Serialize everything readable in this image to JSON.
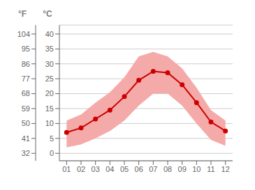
{
  "chart_data": {
    "type": "line",
    "x": [
      1,
      2,
      3,
      4,
      5,
      6,
      7,
      8,
      9,
      10,
      11,
      12
    ],
    "xlim": [
      0.5,
      12.5
    ],
    "xticks": [
      {
        "value": 1,
        "label": "01"
      },
      {
        "value": 2,
        "label": "02"
      },
      {
        "value": 3,
        "label": "03"
      },
      {
        "value": 4,
        "label": "04"
      },
      {
        "value": 5,
        "label": "05"
      },
      {
        "value": 6,
        "label": "06"
      },
      {
        "value": 7,
        "label": "07"
      },
      {
        "value": 8,
        "label": "08"
      },
      {
        "value": 9,
        "label": "09"
      },
      {
        "value": 10,
        "label": "10"
      },
      {
        "value": 11,
        "label": "11"
      },
      {
        "value": 12,
        "label": "12"
      }
    ],
    "ylabel": "°C",
    "ylim": [
      -2.5,
      43
    ],
    "yticks": [
      0,
      5,
      10,
      15,
      20,
      25,
      30,
      35,
      40
    ],
    "y2label": "°F",
    "y2lim": [
      27.5,
      109.4
    ],
    "y2ticks": [
      32,
      41,
      50,
      59,
      68,
      77,
      86,
      95,
      104
    ],
    "grid": true,
    "series": [
      {
        "type": "area",
        "color": "#f5aaaa",
        "min": [
          2.0,
          3.0,
          5.0,
          7.5,
          11.0,
          16.0,
          20.0,
          20.0,
          16.0,
          10.0,
          4.5,
          2.5
        ],
        "max": [
          11.0,
          13.0,
          17.0,
          20.5,
          25.5,
          32.5,
          34.0,
          32.5,
          28.5,
          22.0,
          14.5,
          11.0
        ]
      },
      {
        "type": "line",
        "color": "#cc0000",
        "marker": "circle",
        "values": [
          7.0,
          8.5,
          11.5,
          14.5,
          19.0,
          24.5,
          27.5,
          27.0,
          23.0,
          17.0,
          10.5,
          7.5
        ]
      }
    ]
  }
}
